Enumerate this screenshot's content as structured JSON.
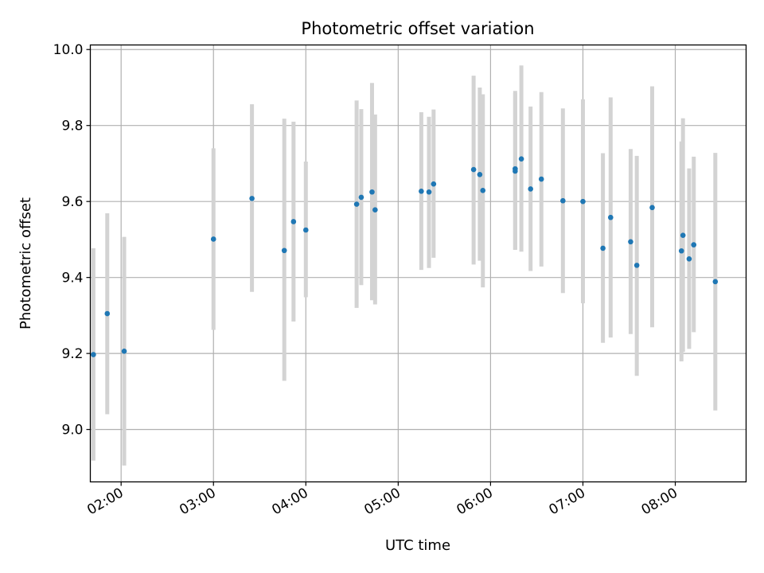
{
  "chart_data": {
    "type": "scatter",
    "title": "Photometric offset variation",
    "xlabel": "UTC time",
    "ylabel": "Photometric offset",
    "x_axis": {
      "kind": "time",
      "range": [
        "01:40",
        "08:46"
      ],
      "ticks": [
        "02:00",
        "03:00",
        "04:00",
        "05:00",
        "06:00",
        "07:00",
        "08:00"
      ]
    },
    "y_axis": {
      "range": [
        8.862,
        10.012
      ],
      "ticks": [
        "9.0",
        "9.2",
        "9.4",
        "9.6",
        "9.8",
        "10.0"
      ]
    },
    "grid": true,
    "colors": {
      "points": "#1f77b4",
      "error_bars": "#d3d3d3",
      "grid": "#b0b0b0"
    },
    "points": [
      {
        "x": "01:42",
        "y": 9.197,
        "low": 8.918,
        "high": 9.477
      },
      {
        "x": "01:51",
        "y": 9.305,
        "low": 9.04,
        "high": 9.569
      },
      {
        "x": "02:02",
        "y": 9.206,
        "low": 8.905,
        "high": 9.507
      },
      {
        "x": "03:00",
        "y": 9.501,
        "low": 9.262,
        "high": 9.74
      },
      {
        "x": "03:25",
        "y": 9.608,
        "low": 9.362,
        "high": 9.856
      },
      {
        "x": "03:46",
        "y": 9.471,
        "low": 9.128,
        "high": 9.818
      },
      {
        "x": "03:52",
        "y": 9.547,
        "low": 9.284,
        "high": 9.81
      },
      {
        "x": "04:00",
        "y": 9.525,
        "low": 9.348,
        "high": 9.705
      },
      {
        "x": "04:33",
        "y": 9.593,
        "low": 9.32,
        "high": 9.866
      },
      {
        "x": "04:36",
        "y": 9.611,
        "low": 9.38,
        "high": 9.843
      },
      {
        "x": "04:43",
        "y": 9.625,
        "low": 9.34,
        "high": 9.912
      },
      {
        "x": "04:45",
        "y": 9.578,
        "low": 9.329,
        "high": 9.829
      },
      {
        "x": "05:15",
        "y": 9.627,
        "low": 9.42,
        "high": 9.835
      },
      {
        "x": "05:20",
        "y": 9.625,
        "low": 9.425,
        "high": 9.823
      },
      {
        "x": "05:23",
        "y": 9.646,
        "low": 9.452,
        "high": 9.842
      },
      {
        "x": "05:49",
        "y": 9.684,
        "low": 9.434,
        "high": 9.931
      },
      {
        "x": "05:53",
        "y": 9.671,
        "low": 9.444,
        "high": 9.9
      },
      {
        "x": "05:55",
        "y": 9.629,
        "low": 9.374,
        "high": 9.882
      },
      {
        "x": "06:16",
        "y": 9.686,
        "low": 9.473,
        "high": 9.891
      },
      {
        "x": "06:16",
        "y": 9.68,
        "low": 9.473,
        "high": 9.885
      },
      {
        "x": "06:20",
        "y": 9.712,
        "low": 9.468,
        "high": 9.958
      },
      {
        "x": "06:26",
        "y": 9.633,
        "low": 9.417,
        "high": 9.85
      },
      {
        "x": "06:33",
        "y": 9.659,
        "low": 9.429,
        "high": 9.888
      },
      {
        "x": "06:47",
        "y": 9.602,
        "low": 9.359,
        "high": 9.845
      },
      {
        "x": "07:00",
        "y": 9.6,
        "low": 9.332,
        "high": 9.869
      },
      {
        "x": "07:13",
        "y": 9.477,
        "low": 9.228,
        "high": 9.727
      },
      {
        "x": "07:18",
        "y": 9.558,
        "low": 9.242,
        "high": 9.874
      },
      {
        "x": "07:31",
        "y": 9.494,
        "low": 9.251,
        "high": 9.738
      },
      {
        "x": "07:35",
        "y": 9.432,
        "low": 9.141,
        "high": 9.72
      },
      {
        "x": "07:45",
        "y": 9.584,
        "low": 9.269,
        "high": 9.903
      },
      {
        "x": "08:04",
        "y": 9.47,
        "low": 9.179,
        "high": 9.758
      },
      {
        "x": "08:05",
        "y": 9.511,
        "low": 9.204,
        "high": 9.819
      },
      {
        "x": "08:09",
        "y": 9.449,
        "low": 9.212,
        "high": 9.687
      },
      {
        "x": "08:12",
        "y": 9.486,
        "low": 9.256,
        "high": 9.718
      },
      {
        "x": "08:26",
        "y": 9.389,
        "low": 9.05,
        "high": 9.728
      }
    ]
  }
}
